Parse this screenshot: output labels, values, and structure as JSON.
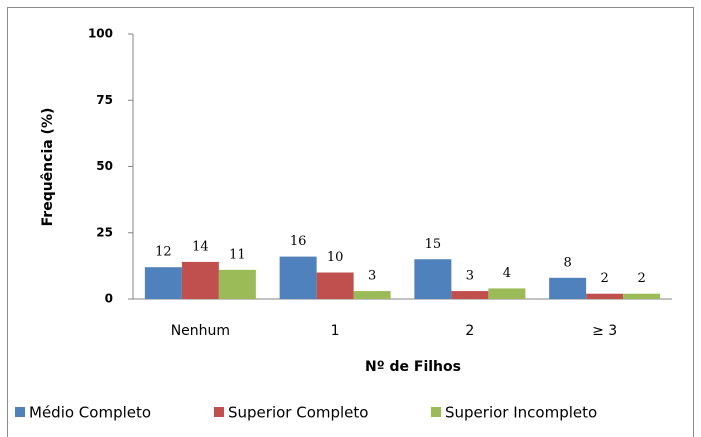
{
  "chart_data": {
    "type": "bar",
    "xlabel": "Nº de Filhos",
    "ylabel": "Frequência (%)",
    "categories": [
      "Nenhum",
      "1",
      "2",
      "≥ 3"
    ],
    "series": [
      {
        "name": "Médio Completo",
        "color": "#4f81bd",
        "values": [
          12,
          16,
          15,
          8
        ]
      },
      {
        "name": "Superior Completo",
        "color": "#c0504d",
        "values": [
          14,
          10,
          3,
          2
        ]
      },
      {
        "name": "Superior Incompleto",
        "color": "#9bbb59",
        "values": [
          11,
          3,
          4,
          2
        ]
      }
    ],
    "ylim": [
      0,
      100
    ],
    "yticks": [
      0,
      25,
      50,
      75,
      100
    ],
    "grid": false,
    "legend": "bottom"
  }
}
